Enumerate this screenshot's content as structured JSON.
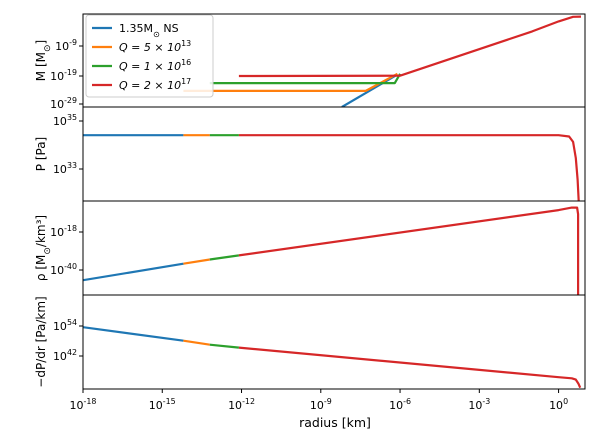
{
  "chart_data": {
    "type": "line",
    "xlabel": "radius [km]",
    "xscale": "log",
    "xlim": [
      1e-18,
      10
    ],
    "xticks": [
      "10^-18",
      "10^-15",
      "10^-12",
      "10^-9",
      "10^-6",
      "10^-3",
      "10^0"
    ],
    "legend": {
      "placement": "top-left",
      "entries": [
        "1.35M_⊙ NS",
        "Q = 5 × 10^13",
        "Q = 1 × 10^16",
        "Q = 2 × 10^17"
      ]
    },
    "series_colors": [
      "#1f77b4",
      "#ff7f0e",
      "#2ca02c",
      "#d62728"
    ],
    "panels": [
      {
        "ylabel": "M [M_⊙]",
        "yscale": "log",
        "yticks": [
          "10^-9",
          "10^-19",
          "10^-29"
        ],
        "ylim": [
          -29,
          1
        ],
        "series": [
          {
            "name": "1.35M_⊙ NS",
            "x_log10": [
              -8.2,
              -6.1
            ],
            "y_log10": [
              -29,
              -18.5
            ]
          },
          {
            "name": "Q = 5 × 10^13",
            "x_log10": [
              -14.2,
              -7.3,
              -6.1
            ],
            "y_log10": [
              -23.8,
              -23.8,
              -18.3
            ]
          },
          {
            "name": "Q = 1 × 10^16",
            "x_log10": [
              -13.2,
              -6.2,
              -6.0
            ],
            "y_log10": [
              -21.3,
              -21.3,
              -18.3
            ]
          },
          {
            "name": "Q = 2 × 10^17",
            "x_log10": [
              -12.1,
              -6.0,
              -1.0,
              0.0,
              0.55,
              0.85
            ],
            "y_log10": [
              -19.0,
              -18.9,
              -4.6,
              -1.4,
              0.1,
              0.15
            ]
          }
        ]
      },
      {
        "ylabel": "P [Pa]",
        "yscale": "log",
        "yticks": [
          "10^35",
          "10^33"
        ],
        "ylim": [
          32.1,
          35.6
        ],
        "series": [
          {
            "name": "1.35M_⊙ NS",
            "x_log10": [
              -18,
              -14.2
            ],
            "y_log10": [
              34.55,
              34.55
            ]
          },
          {
            "name": "Q = 5 × 10^13",
            "x_log10": [
              -14.2,
              -13.2
            ],
            "y_log10": [
              34.55,
              34.55
            ]
          },
          {
            "name": "Q = 1 × 10^16",
            "x_log10": [
              -13.2,
              -12.1
            ],
            "y_log10": [
              34.55,
              34.55
            ]
          },
          {
            "name": "Q = 2 × 10^17",
            "x_log10": [
              -12.1,
              0.0,
              0.4,
              0.55,
              0.65,
              0.72,
              0.76
            ],
            "y_log10": [
              34.55,
              34.55,
              34.5,
              34.3,
              33.7,
              32.9,
              32.1
            ]
          }
        ]
      },
      {
        "ylabel": "ρ [M_⊙/km³]",
        "yscale": "log",
        "yticks": [
          "10^-18",
          "10^-40"
        ],
        "ylim": [
          -55,
          2
        ],
        "series": [
          {
            "name": "1.35M_⊙ NS",
            "x_log10": [
              -18,
              -14.2
            ],
            "y_log10": [
              -46,
              -36
            ]
          },
          {
            "name": "Q = 5 × 10^13",
            "x_log10": [
              -14.2,
              -13.2
            ],
            "y_log10": [
              -36,
              -33.5
            ]
          },
          {
            "name": "Q = 1 × 10^16",
            "x_log10": [
              -13.2,
              -12.1
            ],
            "y_log10": [
              -33.5,
              -31
            ]
          },
          {
            "name": "Q = 2 × 10^17",
            "x_log10": [
              -12.1,
              0.0,
              0.5,
              0.7,
              0.74,
              0.74
            ],
            "y_log10": [
              -31,
              -3.5,
              -2.0,
              -2.0,
              -6,
              -55
            ]
          }
        ]
      },
      {
        "ylabel": "−dP/dr [Pa/km]",
        "yscale": "log",
        "yticks": [
          "10^54",
          "10^42"
        ],
        "ylim": [
          30,
          65
        ],
        "series": [
          {
            "name": "1.35M_⊙ NS",
            "x_log10": [
              -18,
              -14.2
            ],
            "y_log10": [
              53,
              48
            ]
          },
          {
            "name": "Q = 5 × 10^13",
            "x_log10": [
              -14.2,
              -13.2
            ],
            "y_log10": [
              48,
              46.5
            ]
          },
          {
            "name": "Q = 1 × 10^16",
            "x_log10": [
              -13.2,
              -12.1
            ],
            "y_log10": [
              46.5,
              45.4
            ]
          },
          {
            "name": "Q = 2 × 10^17",
            "x_log10": [
              -12.1,
              0.0,
              0.5,
              0.65,
              0.75,
              0.82
            ],
            "y_log10": [
              45.4,
              34.4,
              34.0,
              33.5,
              32.0,
              30.5
            ]
          }
        ]
      }
    ]
  }
}
